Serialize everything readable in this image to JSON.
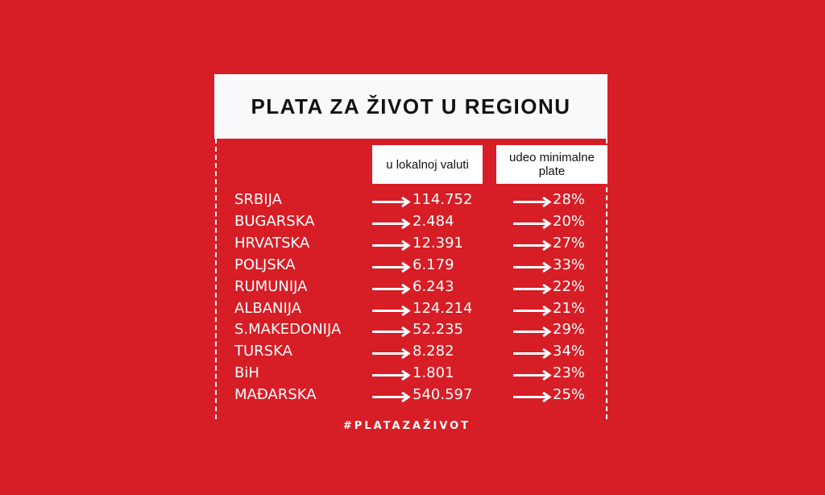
{
  "title": "PLATA ZA ŽIVOT U REGIONU",
  "columns": [
    "u lokalnoj valuti",
    "udeo minimalne plate"
  ],
  "rows": [
    {
      "country": "SRBIJA",
      "local": "114.752",
      "share": "28%"
    },
    {
      "country": "BUGARSKA",
      "local": "2.484",
      "share": "20%"
    },
    {
      "country": "HRVATSKA",
      "local": "12.391",
      "share": "27%"
    },
    {
      "country": "POLJSKA",
      "local": "6.179",
      "share": "33%"
    },
    {
      "country": "RUMUNIJA",
      "local": "6.243",
      "share": "22%"
    },
    {
      "country": "ALBANIJA",
      "local": "124.214",
      "share": "21%"
    },
    {
      "country": "S.MAKEDONIJA",
      "local": "52.235",
      "share": "29%"
    },
    {
      "country": "TURSKA",
      "local": "8.282",
      "share": "34%"
    },
    {
      "country": "BiH",
      "local": "1.801",
      "share": "23%"
    },
    {
      "country": "MAĐARSKA",
      "local": "540.597",
      "share": "25%"
    }
  ],
  "hashtag": "#PLATAZAŽIVOT",
  "colors": {
    "background": "#d71d25",
    "header": "#f7f9fb",
    "text": "#ffffff"
  },
  "icons": {
    "row_marker": "arrow-right-icon"
  }
}
